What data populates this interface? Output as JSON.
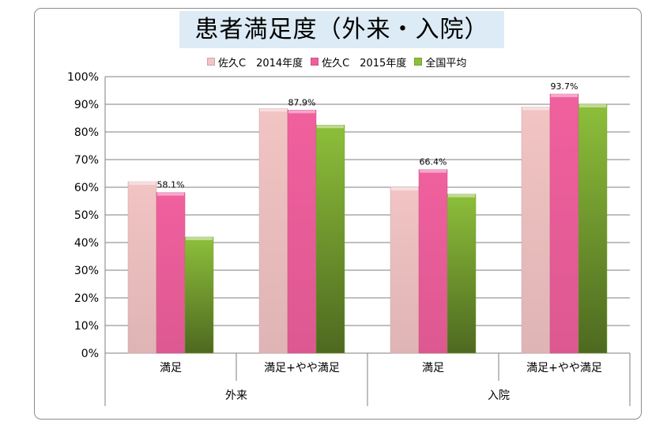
{
  "chart_data": {
    "type": "bar",
    "title": "患者満足度（外来・入院）",
    "series": [
      {
        "name": "佐久C　2014年度",
        "color": "#f2c4c4",
        "values": [
          62,
          88.5,
          60,
          89
        ]
      },
      {
        "name": "佐久C　2015年度",
        "color": "#f0609e",
        "values": [
          58.1,
          87.9,
          66.4,
          93.7
        ]
      },
      {
        "name": "全国平均",
        "color": "#8dbf3a",
        "values": [
          42,
          82.5,
          57.5,
          90
        ]
      }
    ],
    "categories": [
      "満足",
      "満足+やや満足",
      "満足",
      "満足+やや満足"
    ],
    "groups": [
      {
        "label": "外来",
        "span": 2
      },
      {
        "label": "入院",
        "span": 2
      }
    ],
    "data_labels": [
      {
        "series": 1,
        "index": 0,
        "text": "58.1%"
      },
      {
        "series": 1,
        "index": 1,
        "text": "87.9%"
      },
      {
        "series": 1,
        "index": 2,
        "text": "66.4%"
      },
      {
        "series": 1,
        "index": 3,
        "text": "93.7%"
      }
    ],
    "ylim": [
      0,
      100
    ],
    "yticks": [
      "0%",
      "10%",
      "20%",
      "30%",
      "40%",
      "50%",
      "60%",
      "70%",
      "80%",
      "90%",
      "100%"
    ],
    "grid": true,
    "legend_position": "top"
  }
}
